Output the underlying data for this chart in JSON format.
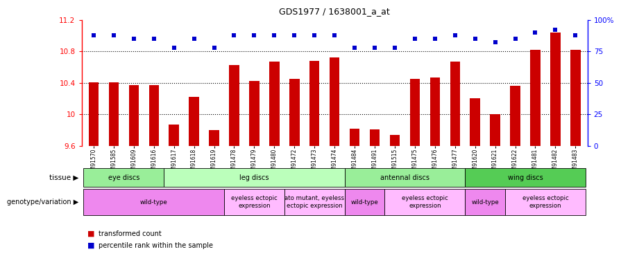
{
  "title": "GDS1977 / 1638001_a_at",
  "samples": [
    "GSM91570",
    "GSM91585",
    "GSM91609",
    "GSM91616",
    "GSM91617",
    "GSM91618",
    "GSM91619",
    "GSM91478",
    "GSM91479",
    "GSM91480",
    "GSM91472",
    "GSM91473",
    "GSM91474",
    "GSM91484",
    "GSM91491",
    "GSM91515",
    "GSM91475",
    "GSM91476",
    "GSM91477",
    "GSM91620",
    "GSM91621",
    "GSM91622",
    "GSM91481",
    "GSM91482",
    "GSM91483"
  ],
  "counts": [
    10.41,
    10.41,
    10.37,
    10.37,
    9.87,
    10.22,
    9.8,
    10.63,
    10.42,
    10.67,
    10.45,
    10.68,
    10.72,
    9.82,
    9.81,
    9.74,
    10.45,
    10.47,
    10.67,
    10.2,
    10.0,
    10.36,
    10.82,
    11.04,
    10.82
  ],
  "percentiles": [
    88,
    88,
    85,
    85,
    78,
    85,
    78,
    88,
    88,
    88,
    88,
    88,
    88,
    78,
    78,
    78,
    85,
    85,
    88,
    85,
    82,
    85,
    90,
    92,
    88
  ],
  "ymin": 9.6,
  "ymax": 11.2,
  "yticks": [
    9.6,
    10.0,
    10.4,
    10.8,
    11.2
  ],
  "ytick_labels": [
    "9.6",
    "10",
    "10.4",
    "10.8",
    "11.2"
  ],
  "right_yticks": [
    0,
    25,
    50,
    75,
    100
  ],
  "right_ytick_labels": [
    "0",
    "25",
    "50",
    "75",
    "100%"
  ],
  "dotted_lines": [
    10.8,
    10.4,
    10.0
  ],
  "bar_color": "#cc0000",
  "dot_color": "#0000cc",
  "tissue_groups": [
    {
      "label": "eye discs",
      "start": 0,
      "end": 4,
      "color": "#99ee99"
    },
    {
      "label": "leg discs",
      "start": 4,
      "end": 13,
      "color": "#bbffbb"
    },
    {
      "label": "antennal discs",
      "start": 13,
      "end": 19,
      "color": "#99ee99"
    },
    {
      "label": "wing discs",
      "start": 19,
      "end": 25,
      "color": "#55cc55"
    }
  ],
  "genotype_groups": [
    {
      "label": "wild-type",
      "start": 0,
      "end": 7,
      "color": "#ee88ee"
    },
    {
      "label": "eyeless ectopic\nexpression",
      "start": 7,
      "end": 10,
      "color": "#ffbbff"
    },
    {
      "label": "ato mutant, eyeless\nectopic expression",
      "start": 10,
      "end": 13,
      "color": "#ffbbff"
    },
    {
      "label": "wild-type",
      "start": 13,
      "end": 15,
      "color": "#ee88ee"
    },
    {
      "label": "eyeless ectopic\nexpression",
      "start": 15,
      "end": 19,
      "color": "#ffbbff"
    },
    {
      "label": "wild-type",
      "start": 19,
      "end": 21,
      "color": "#ee88ee"
    },
    {
      "label": "eyeless ectopic\nexpression",
      "start": 21,
      "end": 25,
      "color": "#ffbbff"
    }
  ],
  "bg_color": "#ffffff"
}
